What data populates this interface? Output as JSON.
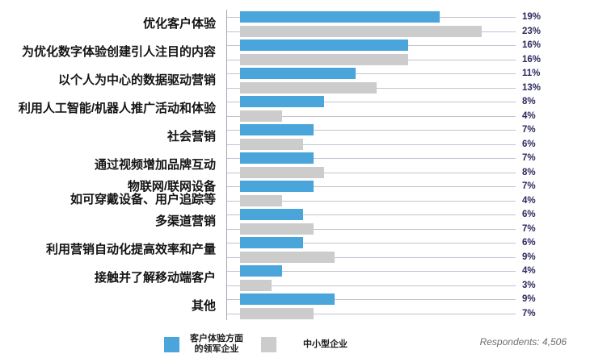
{
  "chart_data": {
    "type": "bar",
    "orientation": "horizontal",
    "title": "",
    "xlabel": "",
    "ylabel": "",
    "xlim": [
      0,
      25
    ],
    "grid": false,
    "legend_position": "bottom",
    "value_suffix": "%",
    "categories": [
      "优化客户体验",
      "为优化数字体验创建引人注目的内容",
      "以个人为中心的数据驱动营销",
      "利用人工智能/机器人推广活动和体验",
      "社会营销",
      "通过视频增加品牌互动",
      "物联网/联网设备\n如可穿戴设备、用户追踪等",
      "多渠道营销",
      "利用营销自动化提高效率和产量",
      "接触并了解移动端客户",
      "其他"
    ],
    "series": [
      {
        "name": "客户体验方面\n的领军企业",
        "color": "#49a5da",
        "values": [
          19,
          16,
          11,
          8,
          7,
          7,
          7,
          6,
          6,
          4,
          9
        ]
      },
      {
        "name": "中小型企业",
        "color": "#cccccc",
        "values": [
          23,
          16,
          13,
          4,
          6,
          8,
          4,
          7,
          9,
          3,
          7
        ]
      }
    ]
  },
  "footer": {
    "respondents": "Respondents: 4,506"
  },
  "colors": {
    "leader_line": "#c3c3d0",
    "axis_line": "#a3a3b5",
    "value_text": "#2b2a5e"
  }
}
